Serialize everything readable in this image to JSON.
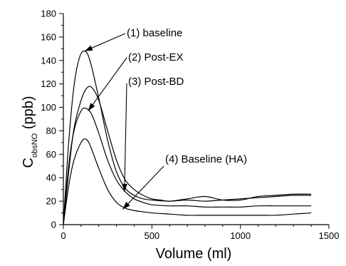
{
  "chart_data": {
    "type": "line",
    "title": "",
    "xlabel": "Volume (ml)",
    "ylabel_main": "C",
    "ylabel_sub": "obsNO",
    "ylabel_unit": " (ppb)",
    "xlim": [
      0,
      1500
    ],
    "ylim": [
      0,
      180
    ],
    "x_ticks": [
      0,
      500,
      1000,
      1500
    ],
    "y_ticks": [
      0,
      20,
      40,
      60,
      80,
      100,
      120,
      140,
      160,
      180
    ],
    "x_minor_step": 100,
    "y_minor_step": 10,
    "grid": false,
    "legend": "none",
    "series": [
      {
        "label": "(1) baseline",
        "points": [
          [
            0,
            0
          ],
          [
            30,
            70
          ],
          [
            60,
            118
          ],
          [
            90,
            142
          ],
          [
            120,
            148
          ],
          [
            150,
            140
          ],
          [
            200,
            108
          ],
          [
            250,
            72
          ],
          [
            300,
            45
          ],
          [
            350,
            31
          ],
          [
            400,
            25
          ],
          [
            450,
            22
          ],
          [
            500,
            21
          ],
          [
            600,
            20
          ],
          [
            700,
            21
          ],
          [
            800,
            20
          ],
          [
            900,
            21
          ],
          [
            1000,
            22
          ],
          [
            1100,
            23
          ],
          [
            1200,
            24
          ],
          [
            1300,
            25
          ],
          [
            1400,
            25
          ]
        ]
      },
      {
        "label": "(2) Post-EX",
        "points": [
          [
            0,
            0
          ],
          [
            30,
            45
          ],
          [
            60,
            82
          ],
          [
            100,
            106
          ],
          [
            130,
            116
          ],
          [
            160,
            117
          ],
          [
            200,
            106
          ],
          [
            250,
            80
          ],
          [
            300,
            55
          ],
          [
            350,
            38
          ],
          [
            400,
            30
          ],
          [
            450,
            25
          ],
          [
            500,
            22
          ],
          [
            550,
            21
          ],
          [
            600,
            20
          ],
          [
            700,
            22
          ],
          [
            800,
            24
          ],
          [
            900,
            21
          ],
          [
            1000,
            21
          ],
          [
            1100,
            24
          ],
          [
            1200,
            25
          ],
          [
            1300,
            26
          ],
          [
            1400,
            26
          ]
        ]
      },
      {
        "label": "(3) Post-BD",
        "points": [
          [
            0,
            0
          ],
          [
            30,
            50
          ],
          [
            60,
            80
          ],
          [
            100,
            97
          ],
          [
            130,
            99
          ],
          [
            160,
            94
          ],
          [
            200,
            78
          ],
          [
            250,
            55
          ],
          [
            300,
            38
          ],
          [
            350,
            28
          ],
          [
            400,
            22
          ],
          [
            450,
            19
          ],
          [
            500,
            17
          ],
          [
            600,
            16
          ],
          [
            700,
            16
          ],
          [
            800,
            15
          ],
          [
            900,
            15
          ],
          [
            1000,
            15
          ],
          [
            1100,
            16
          ],
          [
            1200,
            16
          ],
          [
            1300,
            16
          ],
          [
            1400,
            16
          ]
        ]
      },
      {
        "label": "(4) Baseline (HA)",
        "points": [
          [
            0,
            0
          ],
          [
            30,
            33
          ],
          [
            60,
            55
          ],
          [
            100,
            70
          ],
          [
            125,
            73
          ],
          [
            150,
            68
          ],
          [
            200,
            48
          ],
          [
            250,
            30
          ],
          [
            300,
            19
          ],
          [
            350,
            14
          ],
          [
            400,
            12
          ],
          [
            450,
            11
          ],
          [
            500,
            10
          ],
          [
            600,
            9
          ],
          [
            700,
            8
          ],
          [
            800,
            8
          ],
          [
            900,
            8
          ],
          [
            1000,
            8
          ],
          [
            1100,
            8
          ],
          [
            1200,
            8
          ],
          [
            1300,
            9
          ],
          [
            1400,
            10
          ]
        ]
      }
    ],
    "annotations": [
      {
        "text": "(1) baseline",
        "target": [
          120,
          148
        ]
      },
      {
        "text": "(2) Post-EX",
        "target": [
          140,
          97
        ]
      },
      {
        "text": "(3) Post-BD",
        "target": [
          345,
          28
        ]
      },
      {
        "text": "(4) Baseline (HA)",
        "target": [
          335,
          13
        ]
      }
    ]
  }
}
